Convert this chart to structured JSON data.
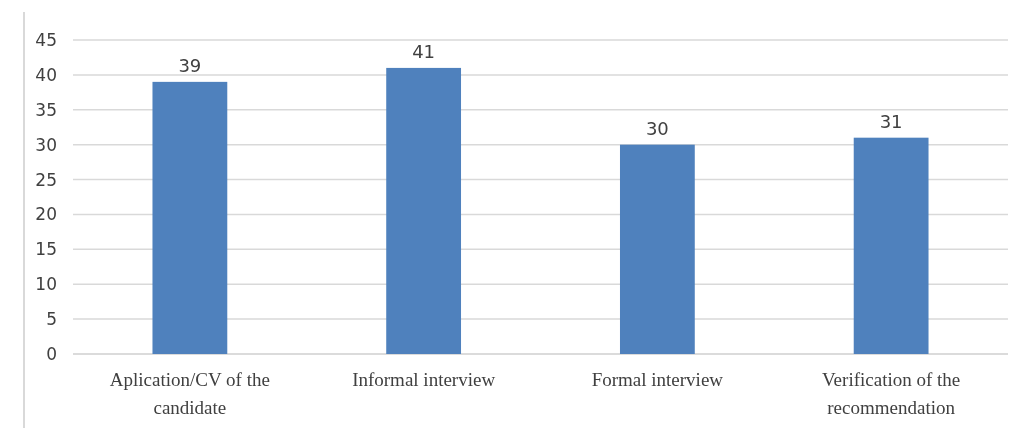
{
  "chart_data": {
    "type": "bar",
    "categories": [
      "Aplication/CV of the candidate",
      "Informal interview",
      "Formal interview",
      "Verification of the recommendation"
    ],
    "values": [
      39,
      41,
      30,
      31
    ],
    "color": "#4f81bd",
    "ylim": [
      0,
      45
    ],
    "yticks": [
      0,
      5,
      10,
      15,
      20,
      25,
      30,
      35,
      40,
      45
    ],
    "grid": "y",
    "data_labels": true
  }
}
